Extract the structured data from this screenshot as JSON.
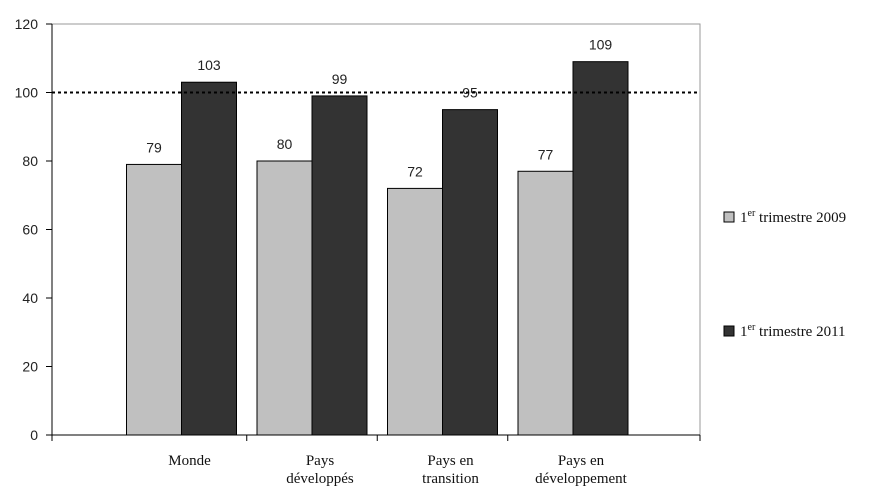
{
  "chart_data": {
    "type": "bar",
    "categories": [
      [
        "Monde"
      ],
      [
        "Pays",
        "développés"
      ],
      [
        "Pays en",
        "transition"
      ],
      [
        "Pays en",
        "développement"
      ]
    ],
    "series": [
      {
        "name_base": "1",
        "name_sup": "er",
        "name_rest": " trimestre 2009",
        "color": "#c0c0c0",
        "values": [
          79,
          80,
          72,
          77
        ],
        "labels": [
          "79",
          "80",
          "72",
          "77"
        ]
      },
      {
        "name_base": "1",
        "name_sup": "er",
        "name_rest": " trimestre 2011",
        "color": "#333333",
        "values": [
          103,
          99,
          95,
          109
        ],
        "labels": [
          "103",
          "99",
          "95",
          "109"
        ]
      }
    ],
    "ylim": [
      0,
      120
    ],
    "yticks": [
      0,
      20,
      40,
      60,
      80,
      100,
      120
    ],
    "reference_line": 100,
    "grid": false,
    "legend_position": "right"
  }
}
